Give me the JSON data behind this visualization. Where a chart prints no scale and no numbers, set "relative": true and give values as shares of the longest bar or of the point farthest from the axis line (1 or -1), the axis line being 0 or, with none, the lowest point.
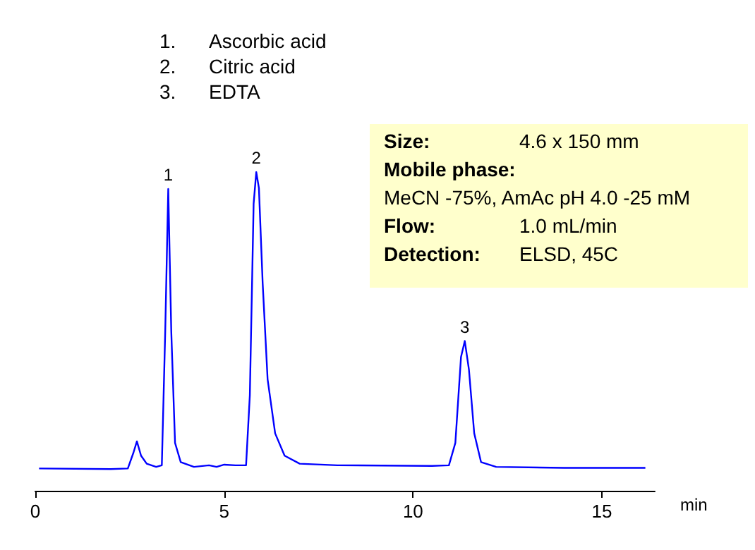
{
  "chart_data": [
    {
      "type": "line",
      "relative": true,
      "xlabel": "min",
      "xlim": [
        0,
        16.4
      ],
      "xticks": [
        0,
        5,
        10,
        15
      ],
      "tick_labels": "x",
      "series": [
        {
          "color": "#0000ff",
          "x": [
            0.1,
            2.0,
            2.45,
            2.6,
            2.69,
            2.8,
            2.95,
            3.2,
            3.35,
            3.44,
            3.52,
            3.6,
            3.7,
            3.85,
            4.2,
            4.6,
            4.8,
            5.0,
            5.3,
            5.58,
            5.68,
            5.78,
            5.85,
            5.92,
            6.02,
            6.15,
            6.35,
            6.6,
            7.0,
            8.0,
            10.5,
            10.95,
            11.12,
            11.27,
            11.37,
            11.48,
            11.62,
            11.8,
            12.2,
            14.0,
            16.15
          ],
          "values": [
            0.07,
            0.068,
            0.07,
            0.12,
            0.155,
            0.11,
            0.085,
            0.075,
            0.08,
            0.5,
            0.947,
            0.5,
            0.15,
            0.09,
            0.075,
            0.08,
            0.075,
            0.082,
            0.08,
            0.08,
            0.3,
            0.9,
            1.0,
            0.95,
            0.65,
            0.35,
            0.18,
            0.11,
            0.085,
            0.08,
            0.078,
            0.08,
            0.15,
            0.42,
            0.47,
            0.38,
            0.18,
            0.09,
            0.075,
            0.072,
            0.072
          ]
        }
      ],
      "annotations": [
        {
          "text": "1",
          "x": 3.52,
          "y": 0.947
        },
        {
          "text": "2",
          "x": 5.85,
          "y": 1.0
        },
        {
          "text": "3",
          "x": 11.37,
          "y": 0.47
        },
        "1. Ascorbic acid",
        "2. Citric acid",
        "3. EDTA"
      ]
    },
    {
      "type": "other",
      "annotations": [
        "Size: 4.6 x 150 mm",
        "Mobile phase:",
        "MeCN -75%, AmAc pH 4.0 -25 mM",
        "Flow: 1.0 mL/min",
        "Detection: ELSD, 45C"
      ]
    }
  ]
}
